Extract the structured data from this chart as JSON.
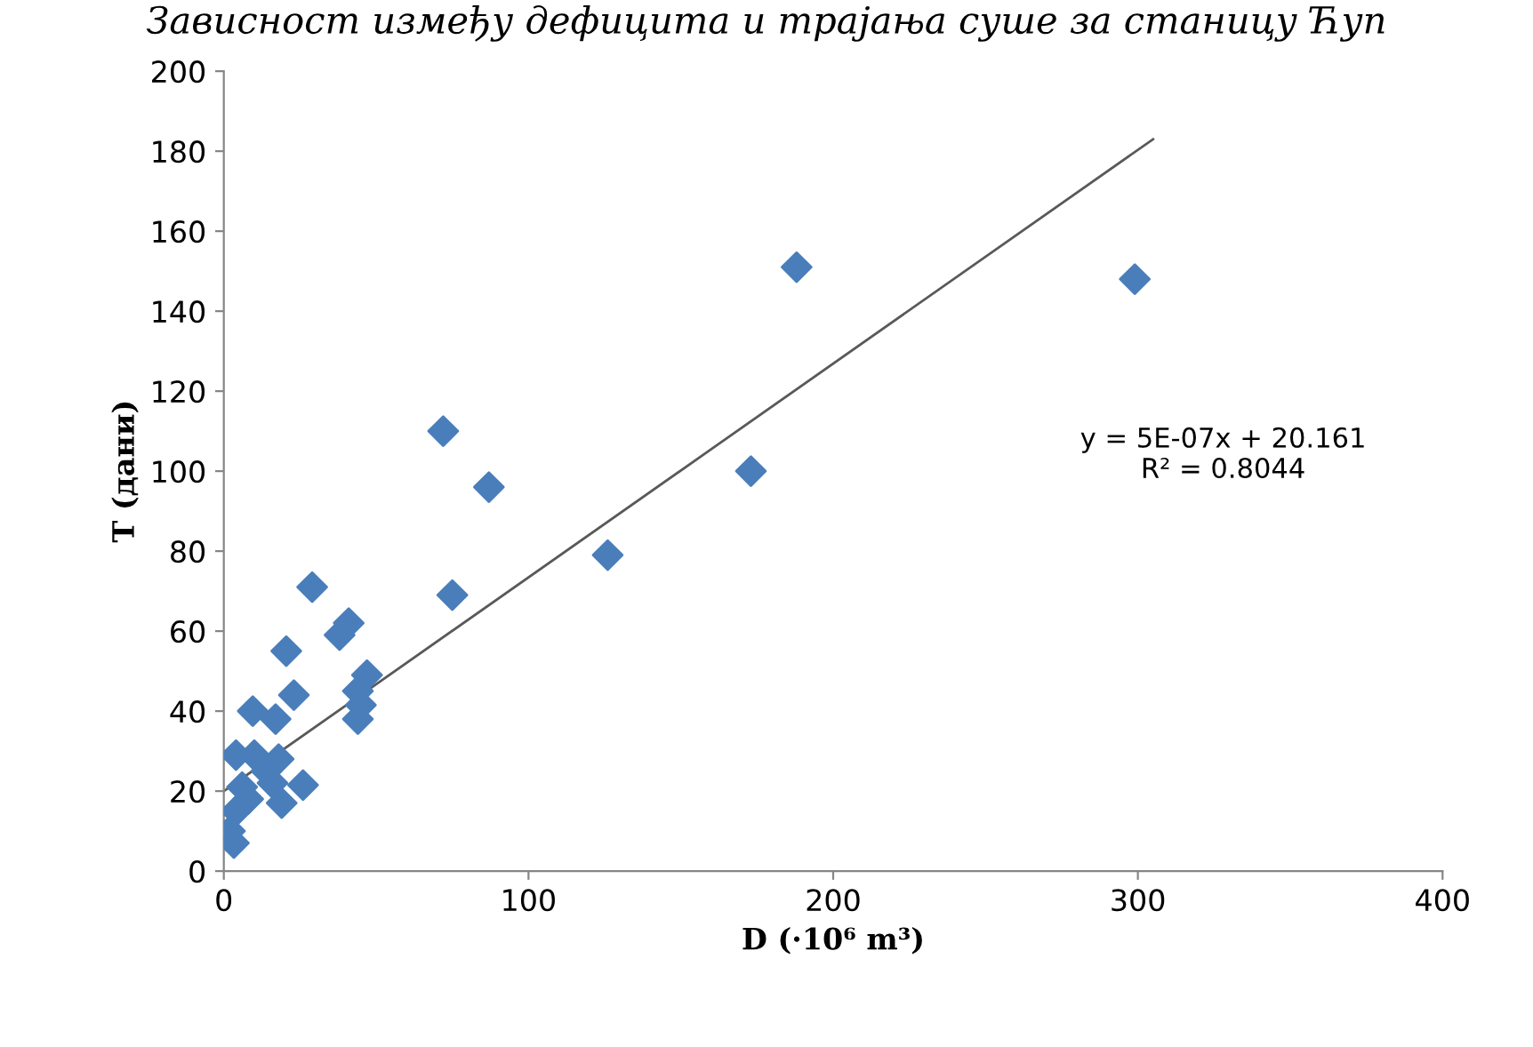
{
  "chart_data": {
    "type": "scatter",
    "title": "Зависност између дефицита и трајања суше за станицу Ћуп",
    "xlabel": "D (·10⁶ m³)",
    "ylabel": "T (дани)",
    "xlim": [
      0,
      400
    ],
    "xticks": [
      0,
      100,
      200,
      300,
      400
    ],
    "ylim": [
      0,
      200
    ],
    "yticks": [
      0,
      20,
      40,
      60,
      80,
      100,
      120,
      140,
      160,
      180,
      200
    ],
    "grid": false,
    "legend": false,
    "series": [
      {
        "color": "#4a7ebb",
        "marker": "diamond",
        "x": [
          299,
          188,
          173,
          126,
          87,
          72,
          75,
          29,
          20.5,
          23,
          41,
          38,
          47,
          44,
          45,
          44,
          9.5,
          17,
          4,
          10,
          18,
          26,
          19,
          16,
          14,
          3.3,
          6,
          8,
          4,
          2
        ],
        "values": [
          148,
          151,
          100,
          79,
          96,
          110,
          69,
          71,
          55,
          44,
          62,
          59,
          49,
          45,
          41.5,
          38,
          40,
          38,
          29,
          29,
          28,
          21.5,
          17,
          22,
          25,
          7,
          21,
          18,
          15,
          10
        ]
      },
      {
        "type": "line",
        "marker": "none",
        "color": "#595959",
        "x": [
          0,
          305
        ],
        "values": [
          20,
          183
        ]
      }
    ],
    "annotations": [
      "y = 5E-07x + 20.161\nR² = 0.8044"
    ]
  }
}
